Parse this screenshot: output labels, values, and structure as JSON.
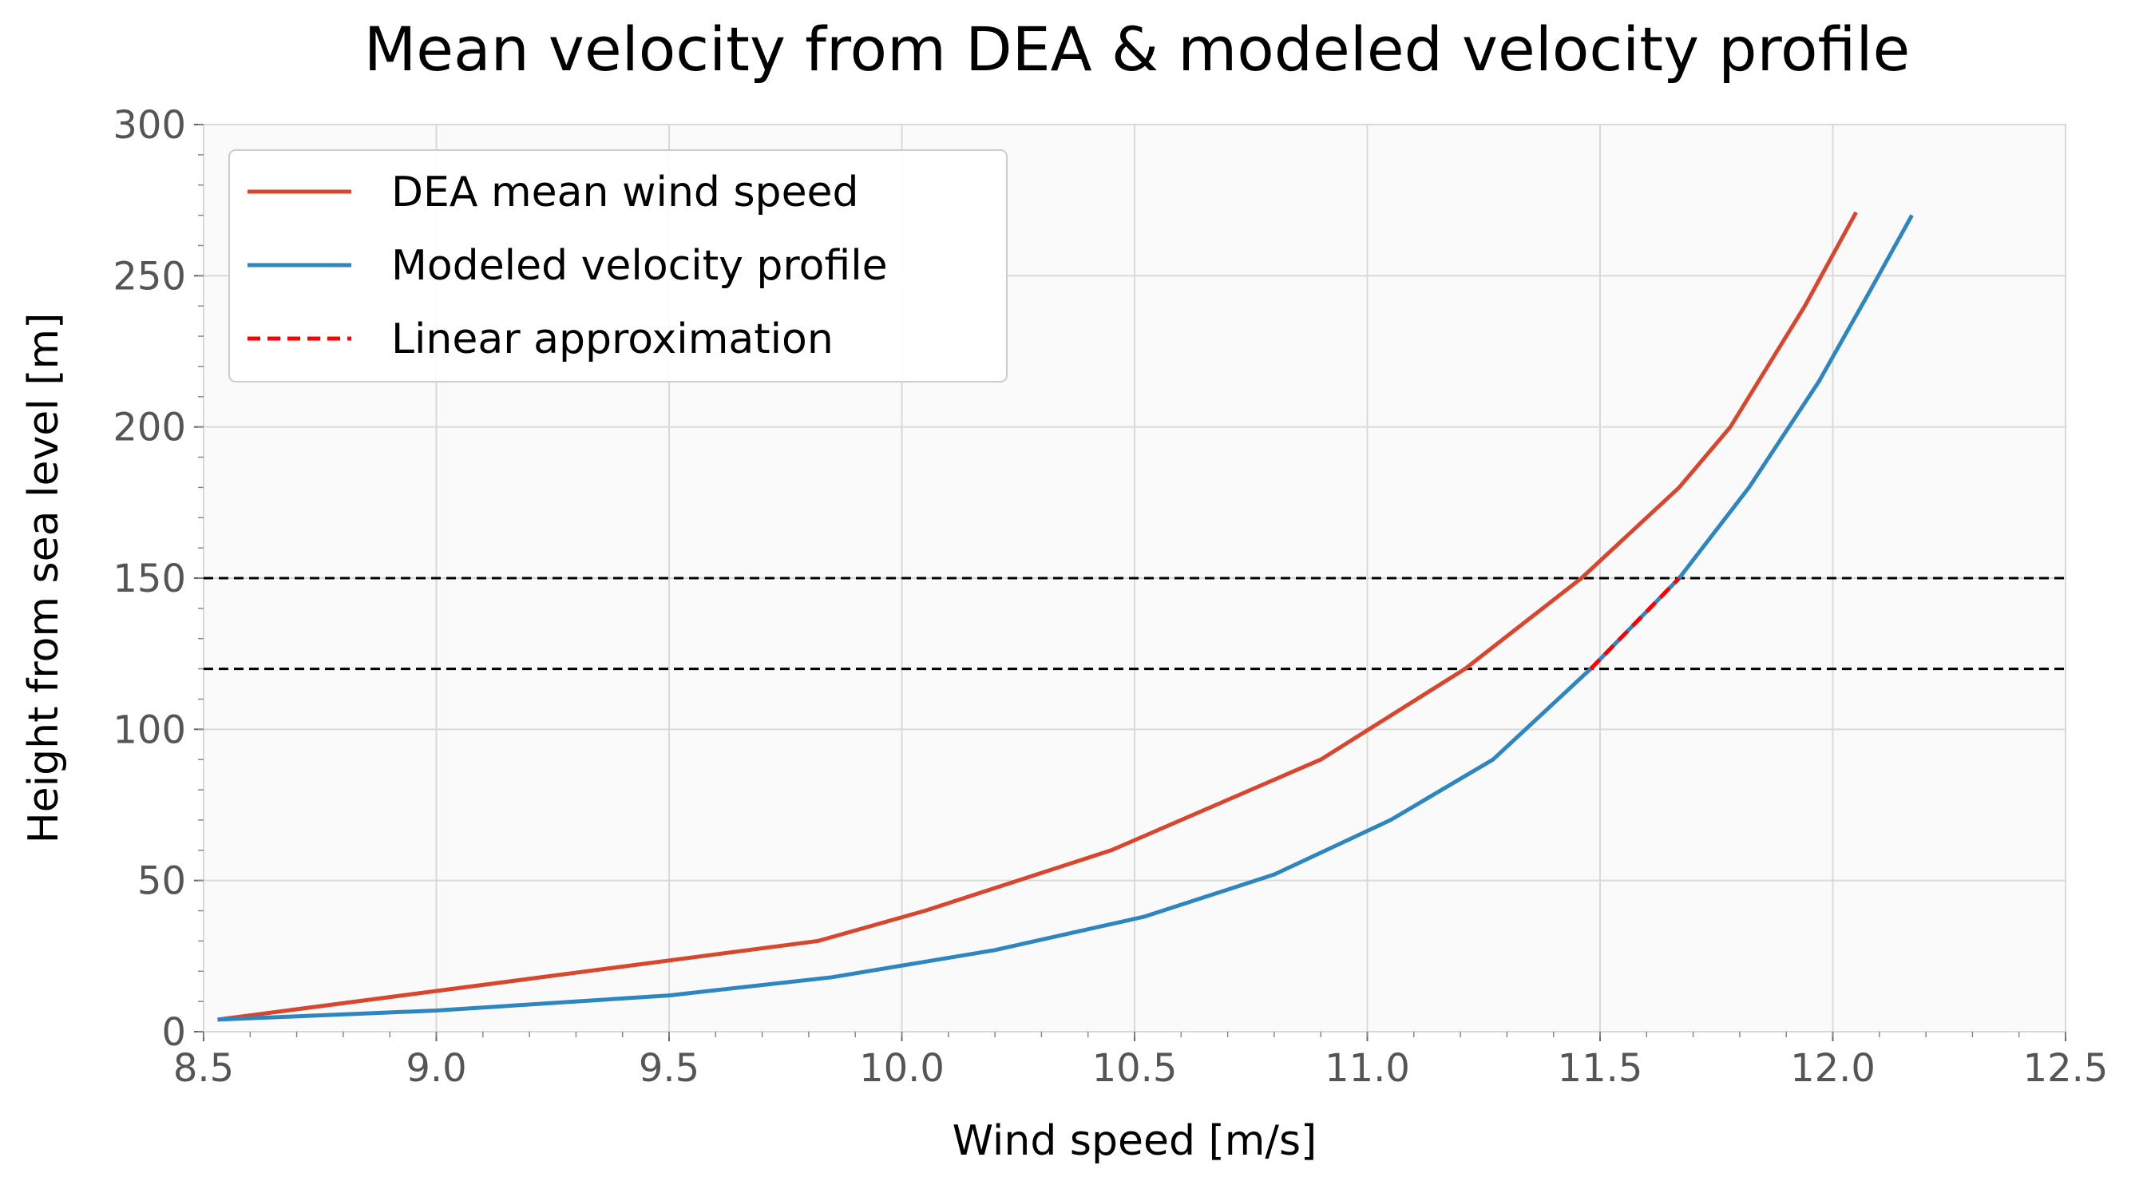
{
  "chart_data": {
    "type": "line",
    "title": "Mean velocity from DEA & modeled velocity profile",
    "xlabel": "Wind speed [m/s]",
    "ylabel": "Height from sea level [m]",
    "xlim": [
      8.5,
      12.5
    ],
    "ylim": [
      0,
      300
    ],
    "xticks": [
      8.5,
      9.0,
      9.5,
      10.0,
      10.5,
      11.0,
      11.5,
      12.0,
      12.5
    ],
    "xtick_labels": [
      "8.5",
      "9.0",
      "9.5",
      "10.0",
      "10.5",
      "11.0",
      "11.5",
      "12.0",
      "12.5"
    ],
    "yticks": [
      0,
      50,
      100,
      150,
      200,
      250,
      300
    ],
    "ytick_labels": [
      "0",
      "50",
      "100",
      "150",
      "200",
      "250",
      "300"
    ],
    "grid": true,
    "legend_position": "top-left",
    "series": [
      {
        "name": "DEA mean wind speed",
        "color": "#d8472d",
        "style": "solid",
        "x": [
          8.53,
          9.82,
          10.05,
          10.45,
          10.9,
          11.21,
          11.46,
          11.67,
          11.78,
          11.94,
          12.05
        ],
        "y": [
          4,
          30,
          40,
          60,
          90,
          120,
          150,
          180,
          200,
          240,
          271
        ]
      },
      {
        "name": "Modeled velocity profile",
        "color": "#2e86c1",
        "style": "solid",
        "x": [
          8.53,
          9.0,
          9.5,
          9.85,
          10.2,
          10.52,
          10.8,
          11.05,
          11.27,
          11.48,
          11.67,
          11.82,
          11.97,
          12.08,
          12.17
        ],
        "y": [
          4,
          7,
          12,
          18,
          27,
          38,
          52,
          70,
          90,
          120,
          150,
          180,
          215,
          245,
          270
        ]
      },
      {
        "name": "Linear approximation",
        "color": "#ff0000",
        "style": "dashed",
        "x": [
          11.48,
          11.67
        ],
        "y": [
          120,
          150
        ]
      }
    ],
    "reference_lines": [
      {
        "axis": "y",
        "value": 150,
        "color": "#000000",
        "style": "dashed"
      },
      {
        "axis": "y",
        "value": 120,
        "color": "#000000",
        "style": "dashed"
      }
    ]
  }
}
